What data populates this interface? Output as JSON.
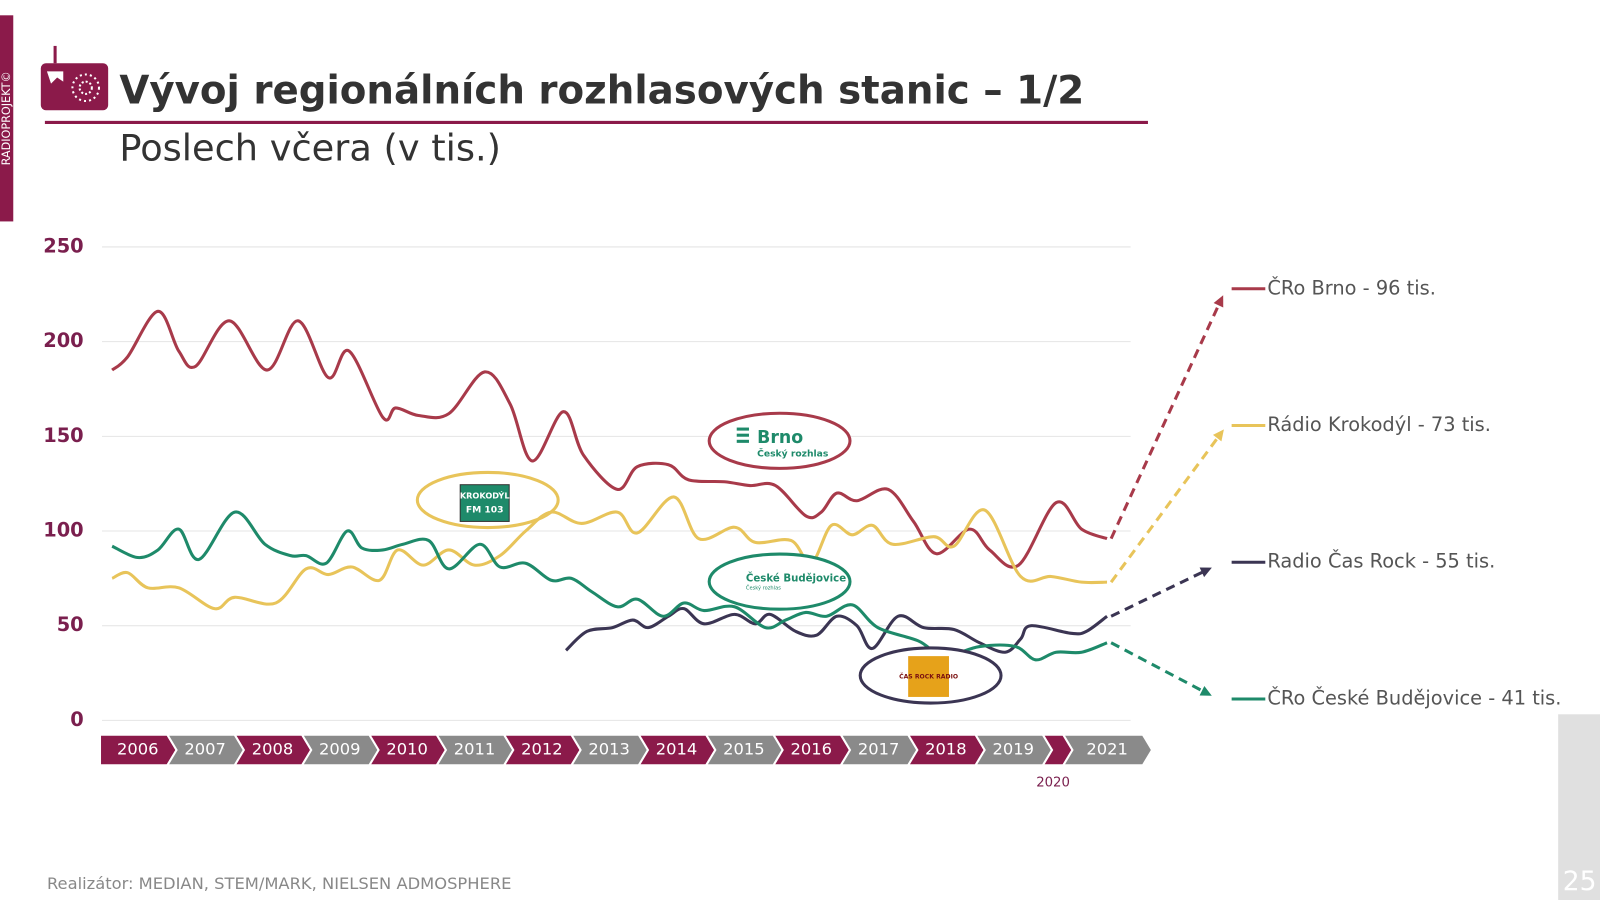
{
  "brand": "RADIOPROJEKT©",
  "title": "Vývoj regionálních rozhlasových stanic – 1/2",
  "subtitle": "Poslech včera (v tis.)",
  "footer": "Realizátor: MEDIAN, STEM/MARK, NIELSEN ADMOSPHERE",
  "page_number": "25",
  "chart_data": {
    "type": "line",
    "ylim": [
      0,
      250
    ],
    "yticks": [
      0,
      50,
      100,
      150,
      200,
      250
    ],
    "grid": true,
    "timeline": [
      {
        "label": "2006"
      },
      {
        "label": "2007"
      },
      {
        "label": "2008"
      },
      {
        "label": "2009"
      },
      {
        "label": "2010"
      },
      {
        "label": "2011"
      },
      {
        "label": "2012"
      },
      {
        "label": "2013"
      },
      {
        "label": "2014"
      },
      {
        "label": "2015"
      },
      {
        "label": "2016"
      },
      {
        "label": "2017"
      },
      {
        "label": "2018"
      },
      {
        "label": "2019"
      },
      {
        "label": "2020",
        "below": true
      },
      {
        "label": "2021"
      }
    ],
    "logos": [
      "Brno",
      "Český rozhlas",
      "České Budějovice",
      "Český rozhlas",
      "KROKODÝL",
      "FM 103",
      "ČAS ROCK RADIO"
    ],
    "series": [
      {
        "name": "ČRo Brno - 96 tis.",
        "color": "#a83a4a",
        "x": [
          2006.18,
          2006.41,
          2006.86,
          2007.17,
          2007.42,
          2007.92,
          2008.48,
          2008.94,
          2009.39,
          2009.7,
          2010.2,
          2010.39,
          2010.73,
          2011.18,
          2011.71,
          2012.09,
          2012.42,
          2012.88,
          2013.18,
          2013.68,
          2013.98,
          2014.44,
          2014.74,
          2015.27,
          2015.65,
          2016.03,
          2016.48,
          2016.71,
          2016.94,
          2017.24,
          2017.7,
          2018.08,
          2018.42,
          2018.91,
          2019.21,
          2019.64,
          2020.65,
          2021.23,
          2021.55
        ],
        "values": [
          185,
          192,
          216,
          195,
          187,
          211,
          185,
          211,
          181,
          195,
          160,
          165,
          161,
          162,
          184,
          167,
          137,
          163,
          140,
          122,
          134,
          135,
          127,
          126,
          124,
          124,
          108,
          110,
          120,
          116,
          122,
          105,
          88,
          101,
          90,
          82,
          115,
          101,
          96
        ]
      },
      {
        "name": "Rádio Krokodýl - 73 tis.",
        "color": "#e8c45a",
        "x": [
          2006.18,
          2006.41,
          2006.71,
          2007.17,
          2007.7,
          2008.0,
          2008.61,
          2009.06,
          2009.39,
          2009.74,
          2010.15,
          2010.42,
          2010.8,
          2011.18,
          2011.56,
          2011.94,
          2012.32,
          2012.7,
          2013.15,
          2013.68,
          2013.98,
          2014.52,
          2014.89,
          2015.42,
          2015.73,
          2016.26,
          2016.56,
          2016.86,
          2017.17,
          2017.47,
          2017.77,
          2018.38,
          2018.68,
          2019.14,
          2019.67,
          2020.4,
          2021.23,
          2021.55
        ],
        "values": [
          75,
          78,
          70,
          70,
          59,
          65,
          62,
          80,
          77,
          81,
          74,
          90,
          82,
          90,
          82,
          87,
          100,
          110,
          104,
          110,
          99,
          118,
          96,
          102,
          94,
          95,
          83,
          103,
          98,
          103,
          93,
          97,
          92,
          111,
          76,
          76,
          73,
          73
        ]
      },
      {
        "name": "Radio Čas Rock - 55 tis.",
        "color": "#3b3553",
        "x": [
          2012.92,
          2013.23,
          2013.61,
          2013.91,
          2014.14,
          2014.44,
          2014.67,
          2014.97,
          2015.42,
          2015.73,
          2015.95,
          2016.33,
          2016.64,
          2016.94,
          2017.24,
          2017.47,
          2017.85,
          2018.23,
          2018.68,
          2019.06,
          2019.44,
          2019.67,
          2019.82,
          2021.1,
          2021.29,
          2021.55
        ],
        "values": [
          37,
          47,
          49,
          53,
          49,
          55,
          59,
          51,
          56,
          51,
          56,
          47,
          45,
          55,
          50,
          38,
          55,
          49,
          48,
          41,
          36,
          43,
          50,
          46,
          47,
          55
        ]
      },
      {
        "name": "ČRo České Budějovice - 41 tis.",
        "color": "#1e8a6a",
        "x": [
          2006.18,
          2006.56,
          2006.86,
          2007.17,
          2007.47,
          2008.0,
          2008.45,
          2008.83,
          2009.06,
          2009.36,
          2009.67,
          2009.89,
          2010.2,
          2010.5,
          2010.88,
          2011.18,
          2011.64,
          2011.94,
          2012.32,
          2012.7,
          2013.0,
          2013.3,
          2013.68,
          2013.98,
          2014.36,
          2014.67,
          2014.97,
          2015.42,
          2015.88,
          2016.18,
          2016.48,
          2016.79,
          2017.17,
          2017.55,
          2018.15,
          2018.53,
          2019.06,
          2019.59,
          2019.89,
          2020.65,
          2021.23,
          2021.55
        ],
        "values": [
          92,
          86,
          90,
          101,
          85,
          110,
          93,
          87,
          87,
          83,
          100,
          91,
          90,
          93,
          95,
          80,
          93,
          81,
          83,
          74,
          75,
          68,
          60,
          64,
          55,
          62,
          58,
          60,
          49,
          53,
          57,
          55,
          61,
          49,
          42,
          34,
          39,
          39,
          32,
          36,
          36,
          41
        ]
      }
    ]
  }
}
